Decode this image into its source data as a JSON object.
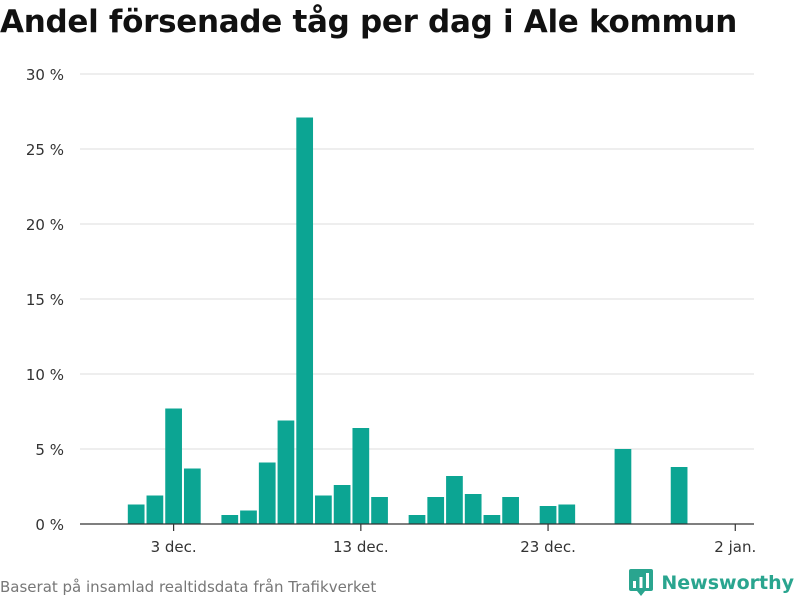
{
  "title": "Andel försenade tåg per dag i Ale kommun",
  "footer": "Baserat på insamlad realtidsdata från Trafikverket",
  "brand": {
    "name": "Newsworthy",
    "icon": "newsworthy-logo-icon",
    "color": "#2aa58f"
  },
  "colors": {
    "bar": "#0ca593",
    "grid": "#dddddd",
    "axis": "#333333",
    "tick_text": "#333333"
  },
  "chart_data": {
    "type": "bar",
    "title": "Andel försenade tåg per dag i Ale kommun",
    "xlabel": "",
    "ylabel": "",
    "unit": "%",
    "ylim": [
      0,
      30
    ],
    "yticks": [
      0,
      5,
      10,
      15,
      20,
      25,
      30
    ],
    "ytick_labels": [
      "0 %",
      "5 %",
      "10 %",
      "15 %",
      "20 %",
      "25 %",
      "30 %"
    ],
    "xlim": [
      "2023-11-28",
      "2024-01-03"
    ],
    "xticks": [
      "2023-12-03",
      "2023-12-13",
      "2023-12-23",
      "2024-01-02"
    ],
    "xtick_labels": [
      "3 dec.",
      "13 dec.",
      "23 dec.",
      "2 jan."
    ],
    "grid": true,
    "x": [
      "2023-12-01",
      "2023-12-02",
      "2023-12-03",
      "2023-12-04",
      "2023-12-06",
      "2023-12-07",
      "2023-12-08",
      "2023-12-09",
      "2023-12-10",
      "2023-12-11",
      "2023-12-12",
      "2023-12-13",
      "2023-12-14",
      "2023-12-16",
      "2023-12-17",
      "2023-12-18",
      "2023-12-19",
      "2023-12-20",
      "2023-12-21",
      "2023-12-23",
      "2023-12-24",
      "2023-12-27",
      "2023-12-30"
    ],
    "values": [
      1.3,
      1.9,
      7.7,
      3.7,
      0.6,
      0.9,
      4.1,
      6.9,
      27.1,
      1.9,
      2.6,
      6.4,
      1.8,
      0.6,
      1.8,
      3.2,
      2.0,
      0.6,
      1.8,
      1.2,
      1.3,
      5.0,
      3.8
    ]
  }
}
